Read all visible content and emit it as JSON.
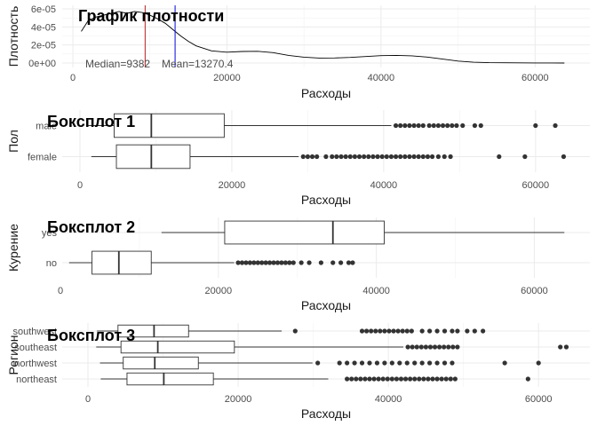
{
  "chart_data": [
    {
      "type": "line",
      "title": "График плотности",
      "xlabel": "Расходы",
      "ylabel": "Плотность",
      "xticks": [
        "0",
        "20000",
        "40000",
        "60000"
      ],
      "yticks": [
        "0e+00",
        "2e-05",
        "4e-05",
        "6e-05"
      ],
      "xlim": [
        -1000,
        66000
      ],
      "ylim": [
        0,
        6.6e-05
      ],
      "x": [
        1100,
        2000,
        3000,
        4000,
        5000,
        6000,
        7000,
        8000,
        9000,
        10000,
        11000,
        12000,
        13000,
        14000,
        15000,
        16000,
        18000,
        20000,
        22000,
        24000,
        26000,
        28000,
        30000,
        32000,
        34000,
        36000,
        38000,
        40000,
        42000,
        44000,
        46000,
        48000,
        50000,
        52000,
        54000,
        56000,
        58000,
        60000,
        62000,
        63800
      ],
      "y": [
        3.5e-05,
        4.7e-05,
        5.1e-05,
        5.3e-05,
        5.5e-05,
        5.7e-05,
        5.5e-05,
        5.7e-05,
        5.6e-05,
        5.3e-05,
        4.9e-05,
        4.4e-05,
        3.7e-05,
        3e-05,
        2.4e-05,
        1.9e-05,
        1.35e-05,
        1.2e-05,
        1.28e-05,
        1.3e-05,
        1.15e-05,
        8.5e-06,
        6.5e-06,
        5.5e-06,
        5.6e-06,
        6.2e-06,
        7.2e-06,
        8.2e-06,
        8.5e-06,
        8e-06,
        6.6e-06,
        4.3e-06,
        2.2e-06,
        9e-07,
        4e-07,
        3e-07,
        2e-07,
        1e-07,
        1e-07,
        0
      ],
      "lines": [
        {
          "label": "Median=9382",
          "value": 9382,
          "color": "#ff0000"
        },
        {
          "label": "Mean=13270.4",
          "value": 13270.4,
          "color": "#0000ff"
        }
      ]
    },
    {
      "type": "boxplot",
      "title": "Боксплот 1",
      "xlabel": "Расходы",
      "ylabel": "Пол",
      "xticks": [
        "0",
        "20000",
        "40000",
        "60000"
      ],
      "xlim": [
        -1000,
        66000
      ],
      "categories": [
        "male",
        "female"
      ],
      "boxes": [
        {
          "min": 1100,
          "q1": 4500,
          "median": 9400,
          "q3": 19000,
          "max": 41000,
          "outliers": [
            41600,
            42200,
            42800,
            43400,
            44000,
            44600,
            45200,
            46000,
            46600,
            47200,
            47800,
            48400,
            49000,
            49600,
            50400,
            52000,
            52800,
            60000,
            62600
          ]
        },
        {
          "min": 1500,
          "q1": 4800,
          "median": 9400,
          "q3": 14500,
          "max": 28800,
          "outliers": [
            29400,
            30000,
            30600,
            31200,
            32400,
            33200,
            33800,
            34400,
            35000,
            35600,
            36200,
            36800,
            37400,
            38000,
            38600,
            39200,
            39800,
            40400,
            41000,
            41600,
            42200,
            42800,
            43400,
            44000,
            44600,
            45200,
            45800,
            46400,
            47200,
            48000,
            48800,
            55200,
            58600,
            63700
          ]
        }
      ]
    },
    {
      "type": "boxplot",
      "title": "Боксплот 2",
      "xlabel": "Расходы",
      "ylabel": "Курение",
      "xticks": [
        "0",
        "20000",
        "40000",
        "60000"
      ],
      "xlim": [
        -1000,
        66000
      ],
      "categories": [
        "yes",
        "no"
      ],
      "boxes": [
        {
          "min": 12800,
          "q1": 20800,
          "median": 34500,
          "q3": 41000,
          "max": 63800,
          "outliers": []
        },
        {
          "min": 1100,
          "q1": 4000,
          "median": 7400,
          "q3": 11500,
          "max": 22000,
          "outliers": [
            22500,
            23000,
            23500,
            24000,
            24500,
            25000,
            25500,
            26000,
            26500,
            27000,
            27500,
            28000,
            28500,
            29000,
            29500,
            30500,
            31500,
            33000,
            34500,
            35500,
            36500,
            37000
          ]
        }
      ]
    },
    {
      "type": "boxplot",
      "title": "Боксплот 3",
      "xlabel": "Расходы",
      "ylabel": "Регион",
      "xticks": [
        "0",
        "20000",
        "40000",
        "60000"
      ],
      "xlim": [
        -1000,
        66000
      ],
      "categories": [
        "southwest",
        "southeast",
        "northwest",
        "northeast"
      ],
      "boxes": [
        {
          "min": 1200,
          "q1": 4000,
          "median": 8800,
          "q3": 13400,
          "max": 25800,
          "outliers": [
            27600,
            36500,
            37100,
            37700,
            38300,
            38900,
            39500,
            40100,
            40700,
            41300,
            41900,
            42500,
            43100,
            44500,
            45500,
            46500,
            47500,
            48500,
            49200,
            50500,
            51500,
            52600
          ]
        },
        {
          "min": 1100,
          "q1": 4400,
          "median": 9300,
          "q3": 19500,
          "max": 42000,
          "outliers": [
            42600,
            43200,
            43800,
            44400,
            45000,
            45600,
            46200,
            46800,
            47400,
            48000,
            48600,
            49200,
            62900,
            63700
          ]
        },
        {
          "min": 1600,
          "q1": 4700,
          "median": 8900,
          "q3": 14700,
          "max": 29900,
          "outliers": [
            30600,
            33500,
            34500,
            35500,
            36500,
            37500,
            38500,
            39500,
            40500,
            41500,
            42500,
            43500,
            44500,
            45500,
            46500,
            47500,
            48500,
            55500,
            60000
          ]
        },
        {
          "min": 1700,
          "q1": 5200,
          "median": 10100,
          "q3": 16700,
          "max": 32000,
          "outliers": [
            34500,
            35100,
            35700,
            36300,
            36900,
            37500,
            38100,
            38700,
            39300,
            39900,
            40500,
            41100,
            41700,
            42300,
            42900,
            43500,
            44100,
            44700,
            45300,
            45900,
            46500,
            47100,
            47700,
            48300,
            48900,
            58600
          ]
        }
      ]
    }
  ]
}
